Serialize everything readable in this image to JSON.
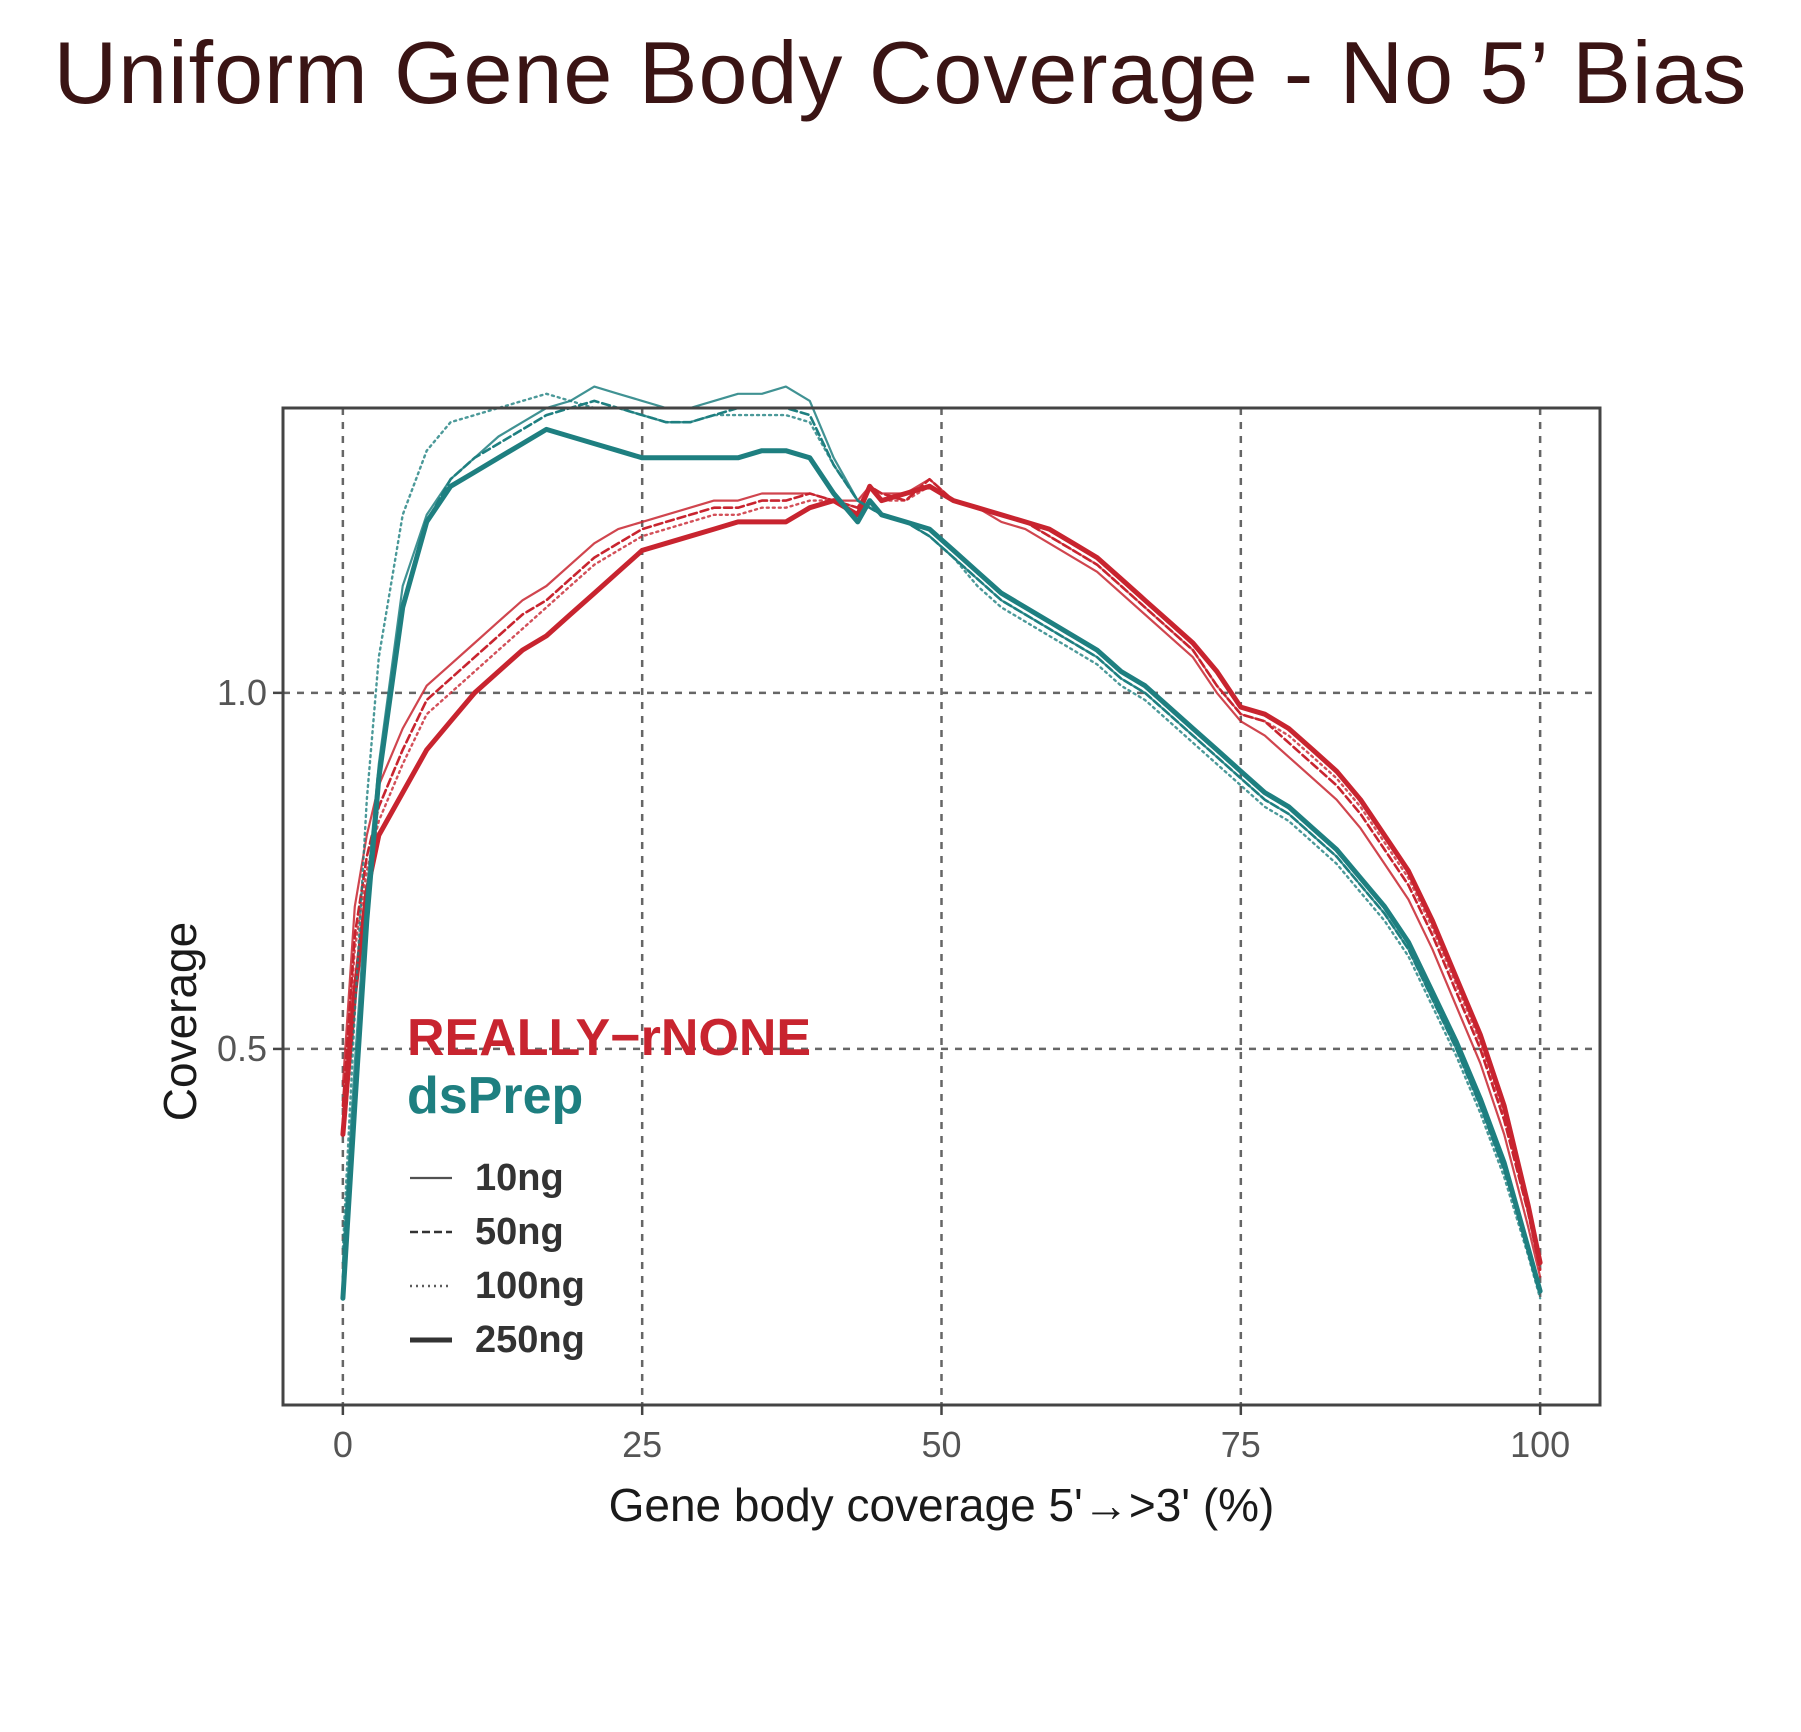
{
  "title": "Uniform Gene Body Coverage - No 5’ Bias",
  "chart_data": {
    "type": "line",
    "xlabel": "Gene body coverage 5'→>3' (%)",
    "ylabel": "Coverage",
    "xlim": [
      -5,
      105
    ],
    "ylim": [
      0.0,
      1.4
    ],
    "xticks": [
      0,
      25,
      50,
      75,
      100
    ],
    "yticks": [
      0.5,
      1.0
    ],
    "xtick_labels": [
      "0",
      "25",
      "50",
      "75",
      "100"
    ],
    "ytick_labels": [
      "0.5",
      "1.0"
    ],
    "grid": true,
    "legend": {
      "placement": "bottom-left",
      "groups": [
        {
          "label": "REALLY−rNONE",
          "color": "#c8242f"
        },
        {
          "label": "dsPrep",
          "color": "#1e7f80"
        }
      ],
      "items": [
        {
          "label": "10ng",
          "style": "solid-thin"
        },
        {
          "label": "50ng",
          "style": "dashed"
        },
        {
          "label": "100ng",
          "style": "dotted"
        },
        {
          "label": "250ng",
          "style": "solid-thick"
        }
      ]
    },
    "x": [
      0,
      1,
      2,
      3,
      5,
      7,
      9,
      11,
      13,
      15,
      17,
      19,
      21,
      23,
      25,
      27,
      29,
      31,
      33,
      35,
      37,
      39,
      41,
      43,
      44,
      45,
      47,
      49,
      51,
      53,
      55,
      57,
      59,
      61,
      63,
      65,
      67,
      69,
      71,
      73,
      75,
      77,
      79,
      81,
      83,
      85,
      87,
      89,
      91,
      93,
      95,
      97,
      99,
      100
    ],
    "series": [
      {
        "name": "REALLY-rNONE 10ng",
        "group": "REALLY-rNONE",
        "color": "#c8242f",
        "style": "solid-thin",
        "values": [
          0.45,
          0.7,
          0.8,
          0.87,
          0.95,
          1.01,
          1.04,
          1.07,
          1.1,
          1.13,
          1.15,
          1.18,
          1.21,
          1.23,
          1.24,
          1.25,
          1.26,
          1.27,
          1.27,
          1.28,
          1.28,
          1.28,
          1.27,
          1.27,
          1.29,
          1.28,
          1.28,
          1.3,
          1.27,
          1.26,
          1.24,
          1.23,
          1.21,
          1.19,
          1.17,
          1.14,
          1.11,
          1.08,
          1.05,
          1.0,
          0.96,
          0.94,
          0.91,
          0.88,
          0.85,
          0.81,
          0.76,
          0.71,
          0.64,
          0.56,
          0.48,
          0.38,
          0.25,
          0.18
        ]
      },
      {
        "name": "REALLY-rNONE 50ng",
        "group": "REALLY-rNONE",
        "color": "#c8242f",
        "style": "dashed",
        "values": [
          0.42,
          0.66,
          0.77,
          0.84,
          0.92,
          0.99,
          1.02,
          1.05,
          1.08,
          1.11,
          1.13,
          1.16,
          1.19,
          1.21,
          1.23,
          1.24,
          1.25,
          1.26,
          1.26,
          1.27,
          1.27,
          1.28,
          1.27,
          1.26,
          1.29,
          1.28,
          1.27,
          1.3,
          1.27,
          1.26,
          1.25,
          1.24,
          1.22,
          1.2,
          1.18,
          1.15,
          1.12,
          1.09,
          1.06,
          1.01,
          0.97,
          0.96,
          0.93,
          0.9,
          0.87,
          0.83,
          0.78,
          0.73,
          0.66,
          0.58,
          0.5,
          0.4,
          0.27,
          0.19
        ]
      },
      {
        "name": "REALLY-rNONE 100ng",
        "group": "REALLY-rNONE",
        "color": "#c8242f",
        "style": "dotted",
        "values": [
          0.4,
          0.64,
          0.75,
          0.82,
          0.9,
          0.97,
          1.0,
          1.03,
          1.06,
          1.09,
          1.12,
          1.15,
          1.18,
          1.2,
          1.22,
          1.23,
          1.24,
          1.25,
          1.25,
          1.26,
          1.26,
          1.27,
          1.27,
          1.26,
          1.29,
          1.27,
          1.27,
          1.29,
          1.27,
          1.26,
          1.25,
          1.24,
          1.22,
          1.2,
          1.18,
          1.15,
          1.12,
          1.09,
          1.06,
          1.01,
          0.97,
          0.96,
          0.94,
          0.91,
          0.88,
          0.84,
          0.79,
          0.74,
          0.67,
          0.59,
          0.51,
          0.41,
          0.27,
          0.19
        ]
      },
      {
        "name": "REALLY-rNONE 250ng",
        "group": "REALLY-rNONE",
        "color": "#c8242f",
        "style": "solid-thick",
        "values": [
          0.38,
          0.58,
          0.72,
          0.8,
          0.86,
          0.92,
          0.96,
          1.0,
          1.03,
          1.06,
          1.08,
          1.11,
          1.14,
          1.17,
          1.2,
          1.21,
          1.22,
          1.23,
          1.24,
          1.24,
          1.24,
          1.26,
          1.27,
          1.25,
          1.29,
          1.27,
          1.28,
          1.29,
          1.27,
          1.26,
          1.25,
          1.24,
          1.23,
          1.21,
          1.19,
          1.16,
          1.13,
          1.1,
          1.07,
          1.03,
          0.98,
          0.97,
          0.95,
          0.92,
          0.89,
          0.85,
          0.8,
          0.75,
          0.68,
          0.6,
          0.52,
          0.42,
          0.28,
          0.2
        ]
      },
      {
        "name": "dsPrep 10ng",
        "group": "dsPrep",
        "color": "#1e7f80",
        "style": "solid-thin",
        "values": [
          0.2,
          0.48,
          0.72,
          0.9,
          1.15,
          1.25,
          1.3,
          1.33,
          1.36,
          1.38,
          1.4,
          1.41,
          1.43,
          1.42,
          1.41,
          1.4,
          1.4,
          1.41,
          1.42,
          1.42,
          1.43,
          1.41,
          1.33,
          1.27,
          1.26,
          1.25,
          1.24,
          1.22,
          1.19,
          1.16,
          1.13,
          1.11,
          1.09,
          1.07,
          1.05,
          1.02,
          1.0,
          0.97,
          0.94,
          0.91,
          0.88,
          0.85,
          0.83,
          0.8,
          0.77,
          0.73,
          0.69,
          0.64,
          0.57,
          0.5,
          0.42,
          0.33,
          0.22,
          0.16
        ]
      },
      {
        "name": "dsPrep 50ng",
        "group": "dsPrep",
        "color": "#1e7f80",
        "style": "dashed",
        "values": [
          0.18,
          0.45,
          0.7,
          0.88,
          1.12,
          1.24,
          1.3,
          1.33,
          1.35,
          1.37,
          1.39,
          1.4,
          1.41,
          1.4,
          1.39,
          1.38,
          1.38,
          1.39,
          1.4,
          1.4,
          1.4,
          1.39,
          1.32,
          1.27,
          1.26,
          1.25,
          1.24,
          1.22,
          1.19,
          1.16,
          1.13,
          1.11,
          1.09,
          1.07,
          1.05,
          1.02,
          1.0,
          0.97,
          0.94,
          0.91,
          0.88,
          0.85,
          0.83,
          0.8,
          0.77,
          0.73,
          0.69,
          0.64,
          0.57,
          0.5,
          0.42,
          0.33,
          0.22,
          0.16
        ]
      },
      {
        "name": "dsPrep 100ng",
        "group": "dsPrep",
        "color": "#1e7f80",
        "style": "dotted",
        "values": [
          0.22,
          0.55,
          0.85,
          1.05,
          1.25,
          1.34,
          1.38,
          1.39,
          1.4,
          1.41,
          1.42,
          1.41,
          1.4,
          1.4,
          1.39,
          1.38,
          1.38,
          1.39,
          1.39,
          1.39,
          1.39,
          1.38,
          1.32,
          1.27,
          1.26,
          1.25,
          1.24,
          1.22,
          1.19,
          1.15,
          1.12,
          1.1,
          1.08,
          1.06,
          1.04,
          1.01,
          0.99,
          0.96,
          0.93,
          0.9,
          0.87,
          0.84,
          0.82,
          0.79,
          0.76,
          0.72,
          0.68,
          0.63,
          0.56,
          0.49,
          0.41,
          0.32,
          0.21,
          0.15
        ]
      },
      {
        "name": "dsPrep 250ng",
        "group": "dsPrep",
        "color": "#1e7f80",
        "style": "solid-thick",
        "values": [
          0.15,
          0.42,
          0.68,
          0.88,
          1.12,
          1.24,
          1.29,
          1.31,
          1.33,
          1.35,
          1.37,
          1.36,
          1.35,
          1.34,
          1.33,
          1.33,
          1.33,
          1.33,
          1.33,
          1.34,
          1.34,
          1.33,
          1.28,
          1.24,
          1.27,
          1.25,
          1.24,
          1.23,
          1.2,
          1.17,
          1.14,
          1.12,
          1.1,
          1.08,
          1.06,
          1.03,
          1.01,
          0.98,
          0.95,
          0.92,
          0.89,
          0.86,
          0.84,
          0.81,
          0.78,
          0.74,
          0.7,
          0.65,
          0.58,
          0.51,
          0.43,
          0.34,
          0.22,
          0.16
        ]
      }
    ]
  }
}
